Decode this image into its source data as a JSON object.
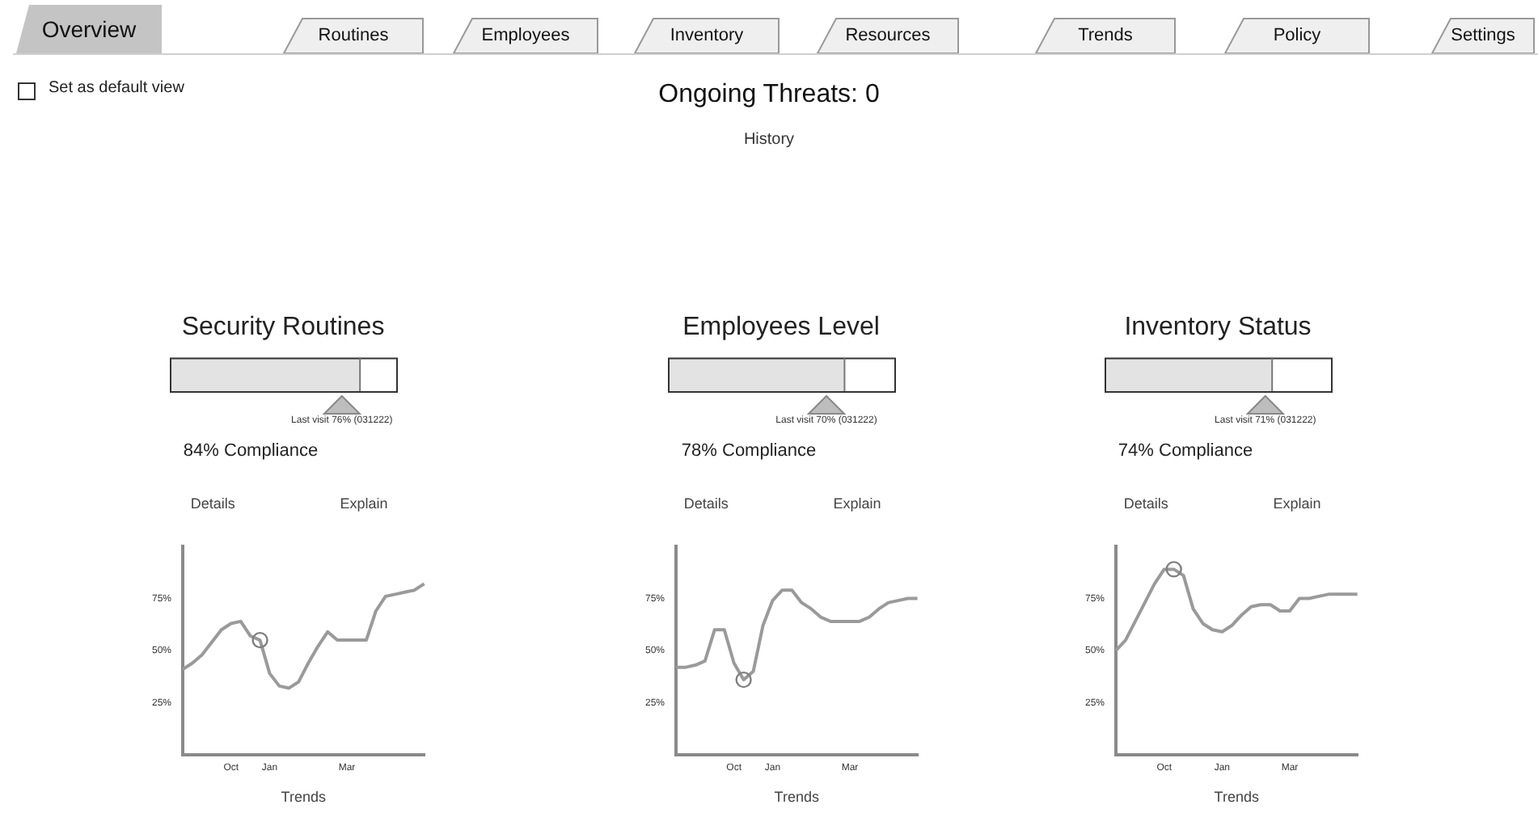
{
  "chart_data": [
    {
      "type": "other",
      "title": "Ongoing Threats: 0",
      "subtitle": "History",
      "annotations": [
        "Overview",
        "Routines",
        "Employees",
        "Inventory",
        "Resources",
        "Trends",
        "Policy",
        "Settings",
        "Set as default view"
      ]
    },
    {
      "type": "other",
      "title": "Security Routines",
      "values": [
        84,
        76
      ],
      "color": "#e3e3e3",
      "value_labels": [
        "84% Compliance",
        "Last visit 76% (031222)"
      ]
    },
    {
      "type": "line",
      "xlabel": "Trends",
      "annotations": [
        "Details",
        "Explain"
      ],
      "ylim": [
        0,
        100
      ],
      "yticks": [
        {
          "value": 25,
          "label": "25%"
        },
        {
          "value": 50,
          "label": "50%"
        },
        {
          "value": 75,
          "label": "75%"
        }
      ],
      "categories": [
        null,
        null,
        null,
        null,
        null,
        "Oct",
        null,
        null,
        null,
        "Jan",
        null,
        null,
        null,
        null,
        null,
        null,
        null,
        "Mar",
        null,
        null,
        null,
        null,
        null,
        null,
        null,
        null
      ],
      "series": [
        {
          "type": "line",
          "color": "#9a9a9a",
          "marker": "none",
          "values": [
            41,
            44,
            48,
            54,
            60,
            63,
            64,
            57,
            55,
            39,
            33,
            32,
            35,
            44,
            52,
            59,
            55,
            55,
            55,
            55,
            69,
            76,
            77,
            78,
            79,
            82
          ]
        },
        {
          "type": "scatter",
          "color": "#808080",
          "marker": "circle",
          "values": [
            null,
            null,
            null,
            null,
            null,
            null,
            null,
            null,
            55,
            null,
            null,
            null,
            null,
            null,
            null,
            null,
            null,
            null,
            null,
            null,
            null,
            null,
            null,
            null,
            null,
            null
          ]
        }
      ]
    },
    {
      "type": "other",
      "title": "Employees Level",
      "values": [
        78,
        70
      ],
      "color": "#e3e3e3",
      "value_labels": [
        "78% Compliance",
        "Last visit 70% (031222)"
      ]
    },
    {
      "type": "line",
      "xlabel": "Trends",
      "annotations": [
        "Details",
        "Explain"
      ],
      "ylim": [
        0,
        100
      ],
      "yticks": [
        {
          "value": 25,
          "label": "25%"
        },
        {
          "value": 50,
          "label": "50%"
        },
        {
          "value": 75,
          "label": "75%"
        }
      ],
      "categories": [
        null,
        null,
        null,
        null,
        null,
        null,
        "Oct",
        null,
        null,
        null,
        "Jan",
        null,
        null,
        null,
        null,
        null,
        null,
        null,
        "Mar",
        null,
        null,
        null,
        null,
        null,
        null,
        null
      ],
      "series": [
        {
          "type": "line",
          "color": "#9a9a9a",
          "marker": "none",
          "values": [
            42,
            42,
            43,
            45,
            60,
            60,
            44,
            36,
            40,
            62,
            74,
            79,
            79,
            73,
            70,
            66,
            64,
            64,
            64,
            64,
            66,
            70,
            73,
            74,
            75,
            75
          ]
        },
        {
          "type": "scatter",
          "color": "#808080",
          "marker": "circle",
          "values": [
            null,
            null,
            null,
            null,
            null,
            null,
            null,
            36,
            null,
            null,
            null,
            null,
            null,
            null,
            null,
            null,
            null,
            null,
            null,
            null,
            null,
            null,
            null,
            null,
            null,
            null
          ]
        }
      ]
    },
    {
      "type": "other",
      "title": "Inventory Status",
      "values": [
        74,
        71
      ],
      "color": "#e3e3e3",
      "value_labels": [
        "74% Compliance",
        "Last visit 71% (031222)"
      ]
    },
    {
      "type": "line",
      "xlabel": "Trends",
      "annotations": [
        "Details",
        "Explain"
      ],
      "ylim": [
        0,
        100
      ],
      "yticks": [
        {
          "value": 25,
          "label": "25%"
        },
        {
          "value": 50,
          "label": "50%"
        },
        {
          "value": 75,
          "label": "75%"
        }
      ],
      "categories": [
        null,
        null,
        null,
        null,
        null,
        "Oct",
        null,
        null,
        null,
        null,
        null,
        "Jan",
        null,
        null,
        null,
        null,
        null,
        null,
        "Mar",
        null,
        null,
        null,
        null,
        null,
        null,
        null
      ],
      "series": [
        {
          "type": "line",
          "color": "#9a9a9a",
          "marker": "none",
          "values": [
            50,
            55,
            64,
            73,
            82,
            89,
            89,
            86,
            70,
            63,
            60,
            59,
            62,
            67,
            71,
            72,
            72,
            69,
            69,
            75,
            75,
            76,
            77,
            77,
            77,
            77
          ]
        },
        {
          "type": "scatter",
          "color": "#808080",
          "marker": "circle",
          "values": [
            null,
            null,
            null,
            null,
            null,
            null,
            89,
            null,
            null,
            null,
            null,
            null,
            null,
            null,
            null,
            null,
            null,
            null,
            null,
            null,
            null,
            null,
            null,
            null,
            null,
            null
          ]
        }
      ]
    }
  ]
}
